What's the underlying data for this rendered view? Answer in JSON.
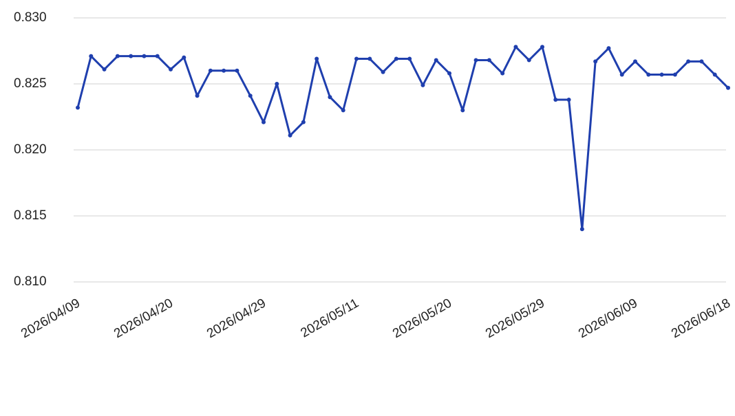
{
  "chart_data": {
    "type": "line",
    "categories": [
      "2026/04/09",
      null,
      null,
      null,
      null,
      null,
      null,
      "2026/04/20",
      null,
      null,
      null,
      null,
      null,
      null,
      "2026/04/29",
      null,
      null,
      null,
      null,
      null,
      null,
      "2026/05/11",
      null,
      null,
      null,
      null,
      null,
      null,
      "2026/05/20",
      null,
      null,
      null,
      null,
      null,
      null,
      "2026/05/29",
      null,
      null,
      null,
      null,
      null,
      null,
      "2026/06/09",
      null,
      null,
      null,
      null,
      null,
      null,
      "2026/06/18"
    ],
    "series": [
      {
        "color": "#1f3fae",
        "values": [
          0.8232,
          0.8271,
          0.8261,
          0.8271,
          0.8271,
          0.8271,
          0.8271,
          0.8261,
          0.827,
          0.8241,
          0.826,
          0.826,
          0.826,
          0.8241,
          0.8221,
          0.825,
          0.8211,
          0.8221,
          0.8269,
          0.824,
          0.823,
          0.8269,
          0.8269,
          0.8259,
          0.8269,
          0.8269,
          0.8249,
          0.8268,
          0.8258,
          0.823,
          0.8268,
          0.8268,
          0.8258,
          0.8278,
          0.8268,
          0.8278,
          0.8238,
          0.8238,
          0.814,
          0.8267,
          0.8277,
          0.8257,
          0.8267,
          0.8257,
          0.8257,
          0.8257,
          0.8267,
          0.8267,
          0.8257,
          0.8247
        ]
      }
    ],
    "ylim": [
      0.81,
      0.83
    ],
    "yticks": [
      {
        "value": 0.81,
        "label": "0.810"
      },
      0.815,
      {
        "value": 0.82,
        "label": "0.820"
      },
      0.825,
      {
        "value": 0.83,
        "label": "0.830"
      }
    ],
    "grid": true
  }
}
